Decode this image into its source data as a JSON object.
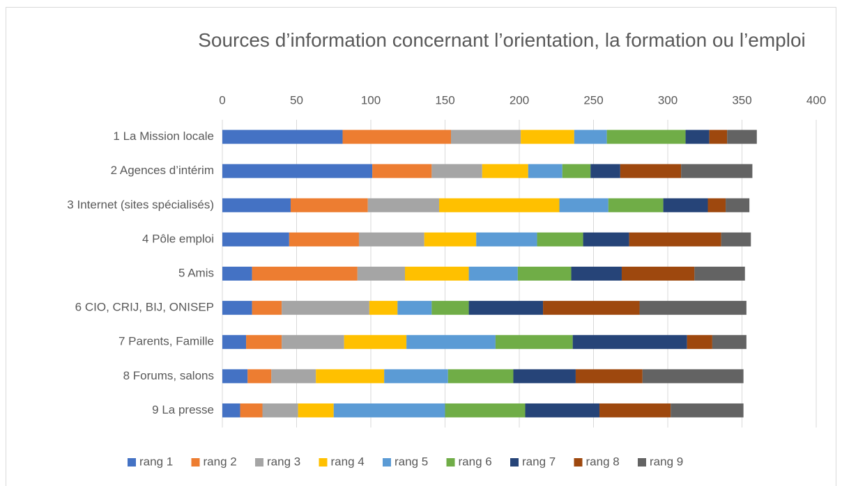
{
  "chart_data": {
    "type": "stacked_barh",
    "title": "Sources d’information concernant l’orientation, la formation ou l’emploi",
    "categories": [
      "1 La Mission locale",
      "2 Agences d’intérim",
      "3 Internet (sites spécialisés)",
      "4 Pôle emploi",
      "5 Amis",
      "6 CIO, CRIJ, BIJ, ONISEP",
      "7 Parents, Famille",
      "8 Forums, salons",
      "9 La presse"
    ],
    "series": [
      {
        "name": "rang 1",
        "color": "#4472c4",
        "values": [
          81,
          101,
          46,
          45,
          20,
          20,
          16,
          17,
          12
        ]
      },
      {
        "name": "rang 2",
        "color": "#ed7d31",
        "values": [
          73,
          40,
          52,
          47,
          71,
          20,
          24,
          16,
          15
        ]
      },
      {
        "name": "rang 3",
        "color": "#a5a5a5",
        "values": [
          47,
          34,
          48,
          44,
          32,
          59,
          42,
          30,
          24
        ]
      },
      {
        "name": "rang 4",
        "color": "#ffc000",
        "values": [
          36,
          31,
          81,
          35,
          43,
          19,
          42,
          46,
          24
        ]
      },
      {
        "name": "rang 5",
        "color": "#5b9bd5",
        "values": [
          22,
          23,
          33,
          41,
          33,
          23,
          60,
          43,
          75
        ]
      },
      {
        "name": "rang 6",
        "color": "#70ad47",
        "values": [
          53,
          19,
          37,
          31,
          36,
          25,
          52,
          44,
          54
        ]
      },
      {
        "name": "rang 7",
        "color": "#264478",
        "values": [
          16,
          20,
          30,
          31,
          34,
          50,
          77,
          42,
          50
        ]
      },
      {
        "name": "rang 8",
        "color": "#9e480e",
        "values": [
          12,
          41,
          12,
          62,
          49,
          65,
          17,
          45,
          48
        ]
      },
      {
        "name": "rang 9",
        "color": "#636363",
        "values": [
          20,
          48,
          16,
          20,
          34,
          72,
          23,
          68,
          49
        ]
      }
    ],
    "xlim": [
      0,
      400
    ],
    "xticks": [
      0,
      50,
      100,
      150,
      200,
      250,
      300,
      350,
      400
    ],
    "grid": true,
    "legend": "bottom"
  }
}
